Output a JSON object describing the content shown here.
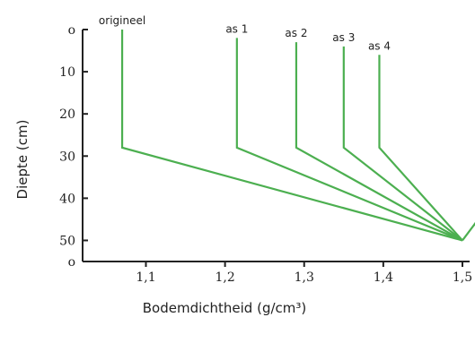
{
  "chart_data": {
    "type": "line",
    "xlabel": "Bodemdichtheid (g/cm³)",
    "ylabel": "Diepte (cm)",
    "xlim": [
      1.02,
      1.5
    ],
    "ylim": [
      0,
      55
    ],
    "x_ticks": [
      {
        "value": 1.1,
        "label": "1,1"
      },
      {
        "value": 1.2,
        "label": "1,2"
      },
      {
        "value": 1.3,
        "label": "1,3"
      },
      {
        "value": 1.4,
        "label": "1,4"
      },
      {
        "value": 1.5,
        "label": "1,5"
      }
    ],
    "y_ticks": [
      {
        "value": 0,
        "label": "o"
      },
      {
        "value": 10,
        "label": "10"
      },
      {
        "value": 20,
        "label": "20"
      },
      {
        "value": 30,
        "label": "30"
      },
      {
        "value": 40,
        "label": "40"
      },
      {
        "value": 50,
        "label": "50"
      },
      {
        "value": 55,
        "label": "o"
      }
    ],
    "series_color": "#4caf50",
    "axis_color": "#222222",
    "series": [
      {
        "name": "origineel",
        "points": [
          [
            1.07,
            0
          ],
          [
            1.07,
            28
          ],
          [
            1.5,
            50
          ]
        ]
      },
      {
        "name": "as 1",
        "points": [
          [
            1.215,
            2
          ],
          [
            1.215,
            28
          ],
          [
            1.5,
            50
          ]
        ]
      },
      {
        "name": "as 2",
        "points": [
          [
            1.29,
            3
          ],
          [
            1.29,
            28
          ],
          [
            1.5,
            50
          ]
        ]
      },
      {
        "name": "as 3",
        "points": [
          [
            1.35,
            4
          ],
          [
            1.35,
            28
          ],
          [
            1.5,
            50
          ]
        ]
      },
      {
        "name": "as 4",
        "points": [
          [
            1.395,
            6
          ],
          [
            1.395,
            28
          ],
          [
            1.5,
            50
          ]
        ]
      },
      {
        "name": "",
        "points": [
          [
            1.5,
            50
          ],
          [
            1.52,
            45
          ]
        ]
      }
    ]
  }
}
